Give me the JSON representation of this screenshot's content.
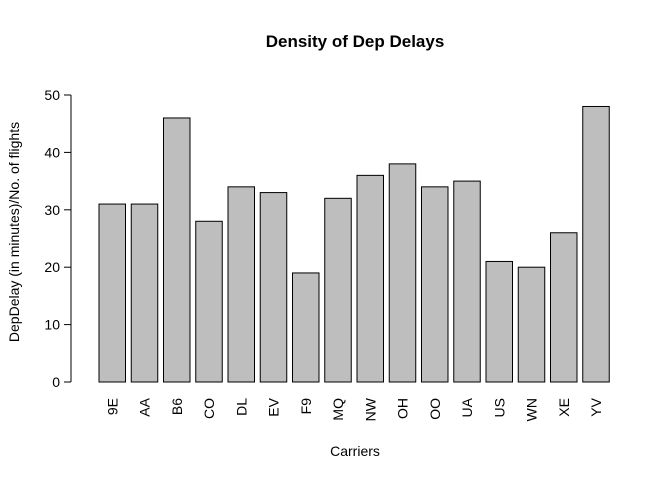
{
  "chart_data": {
    "type": "bar",
    "title": "Density of Dep Delays",
    "xlabel": "Carriers",
    "ylabel": "DepDelay (in minutes)/No. of flights",
    "categories": [
      "9E",
      "AA",
      "B6",
      "CO",
      "DL",
      "EV",
      "F9",
      "MQ",
      "NW",
      "OH",
      "OO",
      "UA",
      "US",
      "WN",
      "XE",
      "YV"
    ],
    "values": [
      31,
      31,
      46,
      28,
      34,
      33,
      19,
      32,
      36,
      38,
      34,
      35,
      21,
      20,
      26,
      48
    ],
    "ylim": [
      0,
      50
    ],
    "yticks": [
      0,
      10,
      20,
      30,
      40,
      50
    ],
    "bar_color": "#bebebe",
    "grid": false
  }
}
